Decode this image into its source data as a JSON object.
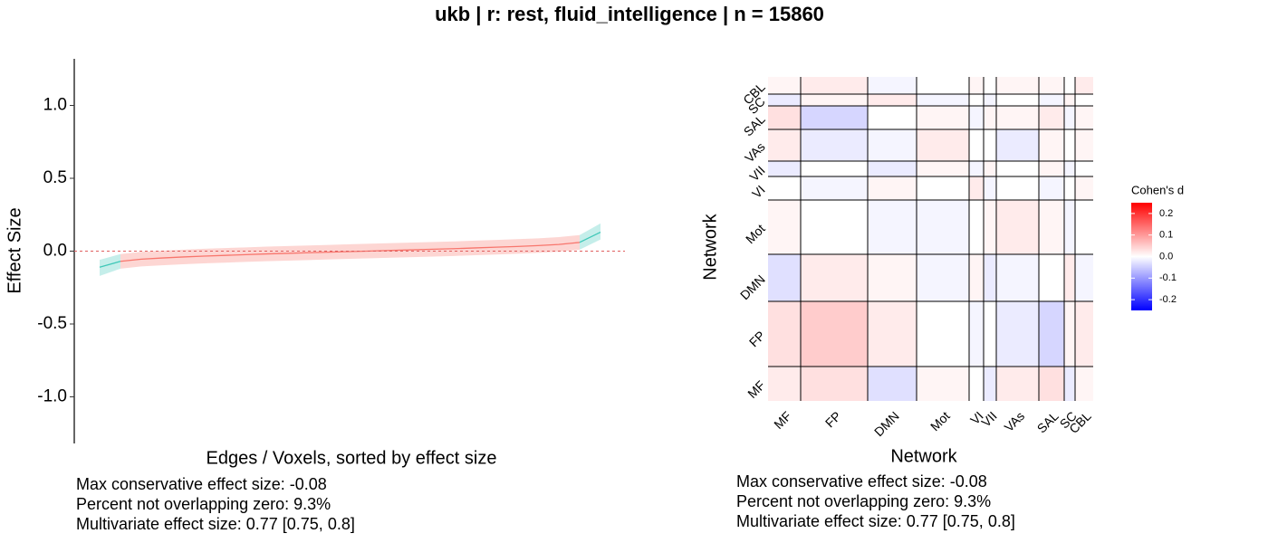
{
  "title": "ukb | r: rest, fluid_intelligence | n = 15860",
  "chart_data": [
    {
      "type": "line",
      "x_label": "Edges / Voxels, sorted by effect size",
      "y_label": "Effect Size",
      "ylim": [
        -1.32,
        1.32
      ],
      "yticks": [
        {
          "value": -1.0,
          "label": "-1.0"
        },
        -0.5,
        {
          "value": 0.0,
          "label": "0.0"
        },
        0.5,
        {
          "value": 1.0,
          "label": "1.0"
        }
      ],
      "hline": 0,
      "series": [
        {
          "color": "#3fc8b8",
          "values": [
            -0.11,
            -0.07,
            null,
            null,
            null,
            null,
            null,
            null,
            null,
            null,
            null,
            null,
            null,
            null,
            null,
            null,
            null,
            null,
            null,
            null,
            null,
            null,
            null,
            null,
            null
          ],
          "lower": [
            -0.17,
            -0.12,
            null,
            null,
            null,
            null,
            null,
            null,
            null,
            null,
            null,
            null,
            null,
            null,
            null,
            null,
            null,
            null,
            null,
            null,
            null,
            null,
            null,
            null,
            null
          ],
          "upper": [
            -0.06,
            -0.02,
            null,
            null,
            null,
            null,
            null,
            null,
            null,
            null,
            null,
            null,
            null,
            null,
            null,
            null,
            null,
            null,
            null,
            null,
            null,
            null,
            null,
            null,
            null
          ]
        },
        {
          "color": "#f8766d",
          "values": [
            null,
            -0.07,
            -0.055,
            -0.047,
            -0.04,
            -0.034,
            -0.029,
            -0.024,
            -0.019,
            -0.015,
            -0.011,
            -0.007,
            -0.003,
            0.001,
            0.005,
            0.009,
            0.013,
            0.017,
            0.022,
            0.027,
            0.032,
            0.038,
            0.046,
            0.06,
            null
          ],
          "lower": [
            null,
            -0.12,
            -0.105,
            -0.097,
            -0.09,
            -0.084,
            -0.079,
            -0.074,
            -0.069,
            -0.065,
            -0.061,
            -0.057,
            -0.053,
            -0.049,
            -0.045,
            -0.041,
            -0.037,
            -0.033,
            -0.028,
            -0.023,
            -0.018,
            -0.012,
            -0.004,
            0.01,
            null
          ],
          "upper": [
            null,
            -0.02,
            -0.005,
            0.003,
            0.01,
            0.016,
            0.021,
            0.026,
            0.031,
            0.035,
            0.039,
            0.043,
            0.047,
            0.051,
            0.055,
            0.059,
            0.063,
            0.067,
            0.072,
            0.077,
            0.082,
            0.088,
            0.096,
            0.11,
            null
          ]
        },
        {
          "color": "#3fc8b8",
          "values": [
            null,
            null,
            null,
            null,
            null,
            null,
            null,
            null,
            null,
            null,
            null,
            null,
            null,
            null,
            null,
            null,
            null,
            null,
            null,
            null,
            null,
            null,
            null,
            0.06,
            0.13
          ],
          "lower": [
            null,
            null,
            null,
            null,
            null,
            null,
            null,
            null,
            null,
            null,
            null,
            null,
            null,
            null,
            null,
            null,
            null,
            null,
            null,
            null,
            null,
            null,
            null,
            0.01,
            0.08
          ],
          "upper": [
            null,
            null,
            null,
            null,
            null,
            null,
            null,
            null,
            null,
            null,
            null,
            null,
            null,
            null,
            null,
            null,
            null,
            null,
            null,
            null,
            null,
            null,
            null,
            0.11,
            0.19
          ]
        }
      ],
      "notes": [
        "Max conservative effect size: -0.08",
        "Percent not overlapping zero: 9.3%",
        "Multivariate effect size: 0.77 [0.75, 0.8]"
      ]
    },
    {
      "type": "heatmap",
      "x_label": "Network",
      "y_label": "Network",
      "categories": [
        "MF",
        "FP",
        "DMN",
        "Mot",
        "VI",
        "VII",
        "VAs",
        "SAL",
        "SC",
        "CBL"
      ],
      "values": [
        [
          0.02,
          0.03,
          -0.03,
          0.01,
          0.0,
          -0.02,
          0.02,
          0.03,
          -0.02,
          0.01
        ],
        [
          0.03,
          0.05,
          0.02,
          0.0,
          -0.01,
          0.0,
          -0.02,
          -0.04,
          0.01,
          0.02
        ],
        [
          -0.03,
          0.02,
          0.01,
          -0.01,
          0.01,
          -0.02,
          -0.01,
          0.0,
          0.02,
          -0.01
        ],
        [
          0.01,
          0.0,
          -0.01,
          -0.01,
          0.0,
          0.01,
          0.02,
          0.01,
          -0.01,
          0.0
        ],
        [
          0.0,
          -0.01,
          0.01,
          0.0,
          0.02,
          -0.01,
          0.0,
          -0.01,
          0.0,
          0.01
        ],
        [
          -0.02,
          0.0,
          -0.02,
          0.01,
          -0.01,
          0.01,
          0.0,
          0.01,
          -0.01,
          0.0
        ],
        [
          0.02,
          -0.02,
          -0.01,
          0.02,
          0.0,
          0.0,
          -0.02,
          0.01,
          0.0,
          0.01
        ],
        [
          0.03,
          -0.04,
          0.0,
          0.01,
          -0.01,
          0.01,
          0.01,
          0.02,
          -0.01,
          0.01
        ],
        [
          -0.02,
          0.01,
          0.02,
          -0.01,
          0.0,
          -0.01,
          0.0,
          -0.01,
          0.01,
          0.0
        ],
        [
          0.01,
          0.02,
          -0.01,
          0.0,
          0.01,
          0.0,
          0.01,
          0.01,
          0.0,
          0.02
        ]
      ],
      "colorbar_title": "Cohen's d",
      "zlim": [
        -0.25,
        0.25
      ],
      "zticks": [
        -0.2,
        -0.1,
        {
          "value": 0.0,
          "label": "0.0"
        },
        0.1,
        0.2
      ],
      "low_color": "#0000ff",
      "mid_color": "#ffffff",
      "high_color": "#ff0000",
      "notes": [
        "Max conservative effect size: -0.08",
        "Percent not overlapping zero: 9.3%",
        "Multivariate effect size: 0.77 [0.75, 0.8]"
      ]
    }
  ]
}
